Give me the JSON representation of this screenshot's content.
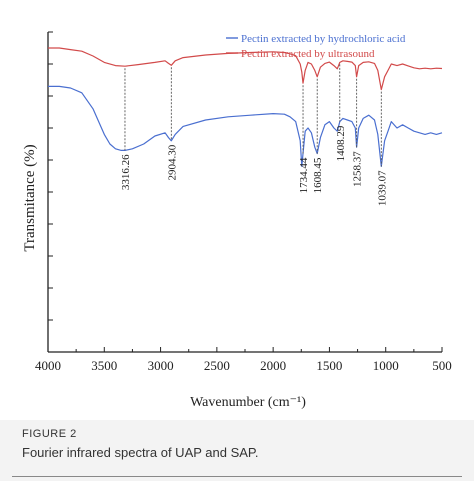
{
  "figure": {
    "label": "FIGURE 2",
    "caption": "Fourier infrared spectra of UAP and SAP."
  },
  "chart_data": {
    "type": "line",
    "title": "",
    "xlabel": "Wavenumber (cm⁻¹)",
    "ylabel": "Transmitance (%)",
    "xlim": [
      4000,
      500
    ],
    "xticks": [
      4000,
      3500,
      3000,
      2500,
      2000,
      1500,
      1000,
      500
    ],
    "ylim": [
      0,
      100
    ],
    "grid": false,
    "legend_position": "top-right",
    "series": [
      {
        "name": "Pectin extracted by hydrochloric acid",
        "color": "#4a6fd0",
        "x": [
          4000,
          3900,
          3800,
          3700,
          3600,
          3500,
          3450,
          3400,
          3350,
          3316.26,
          3250,
          3150,
          3050,
          2960,
          2930,
          2904.3,
          2870,
          2800,
          2600,
          2400,
          2200,
          2000,
          1900,
          1850,
          1800,
          1760,
          1745,
          1734.44,
          1715,
          1690,
          1660,
          1630,
          1608.45,
          1580,
          1540,
          1500,
          1460,
          1430,
          1408.29,
          1380,
          1340,
          1300,
          1270,
          1258.37,
          1240,
          1200,
          1150,
          1100,
          1070,
          1039.07,
          1010,
          980,
          950,
          900,
          850,
          800,
          750,
          700,
          650,
          600,
          550,
          500
        ],
        "y": [
          83,
          83,
          82.5,
          81,
          76,
          68,
          65,
          63.5,
          63,
          63,
          63.5,
          65,
          67.5,
          68.5,
          67,
          66,
          68,
          70.5,
          72.5,
          73.5,
          74,
          74.5,
          74.3,
          73.5,
          72,
          66,
          58,
          62,
          69,
          70,
          68.5,
          64,
          62,
          67,
          71,
          72,
          70,
          69,
          72,
          73,
          72.5,
          72,
          70,
          64,
          70,
          73,
          74,
          72.5,
          68,
          58,
          66,
          69,
          72,
          70,
          71,
          70,
          69,
          68.5,
          68,
          68.5,
          68,
          68.5
        ]
      },
      {
        "name": "Pectin extracted by ultrasound",
        "color": "#d24a4a",
        "x": [
          4000,
          3900,
          3800,
          3700,
          3600,
          3500,
          3400,
          3316.26,
          3200,
          3050,
          2960,
          2930,
          2904.3,
          2870,
          2800,
          2600,
          2400,
          2200,
          2000,
          1900,
          1850,
          1800,
          1760,
          1745,
          1734.44,
          1715,
          1690,
          1660,
          1630,
          1608.45,
          1580,
          1540,
          1500,
          1460,
          1430,
          1408.29,
          1380,
          1340,
          1300,
          1270,
          1258.37,
          1240,
          1200,
          1150,
          1100,
          1070,
          1039.07,
          1010,
          980,
          950,
          900,
          850,
          800,
          750,
          700,
          650,
          600,
          550,
          500
        ],
        "y": [
          95,
          95,
          94.5,
          94,
          92.5,
          90.5,
          89.5,
          89.3,
          89.8,
          90.5,
          91,
          90.2,
          89.6,
          91,
          92,
          92.8,
          93.3,
          93.6,
          93.8,
          93.6,
          93.2,
          92.6,
          90,
          87.5,
          84,
          88,
          90.5,
          90,
          88,
          86,
          89,
          90.2,
          90.6,
          89.5,
          88.5,
          90.5,
          91,
          90.8,
          90.6,
          89.5,
          86,
          89.5,
          90.5,
          90.7,
          90.2,
          88,
          82,
          86,
          88,
          90,
          89.5,
          90,
          89.4,
          88.8,
          88.5,
          88.7,
          88.5,
          88.7,
          88.6
        ]
      }
    ],
    "annotations": [
      {
        "x": 3316.26,
        "label": "3316.26"
      },
      {
        "x": 2904.3,
        "label": "2904.30"
      },
      {
        "x": 1734.44,
        "label": "1734.44"
      },
      {
        "x": 1608.45,
        "label": "1608.45"
      },
      {
        "x": 1408.29,
        "label": "1408.29"
      },
      {
        "x": 1258.37,
        "label": "1258.37"
      },
      {
        "x": 1039.07,
        "label": "1039.07"
      }
    ]
  }
}
